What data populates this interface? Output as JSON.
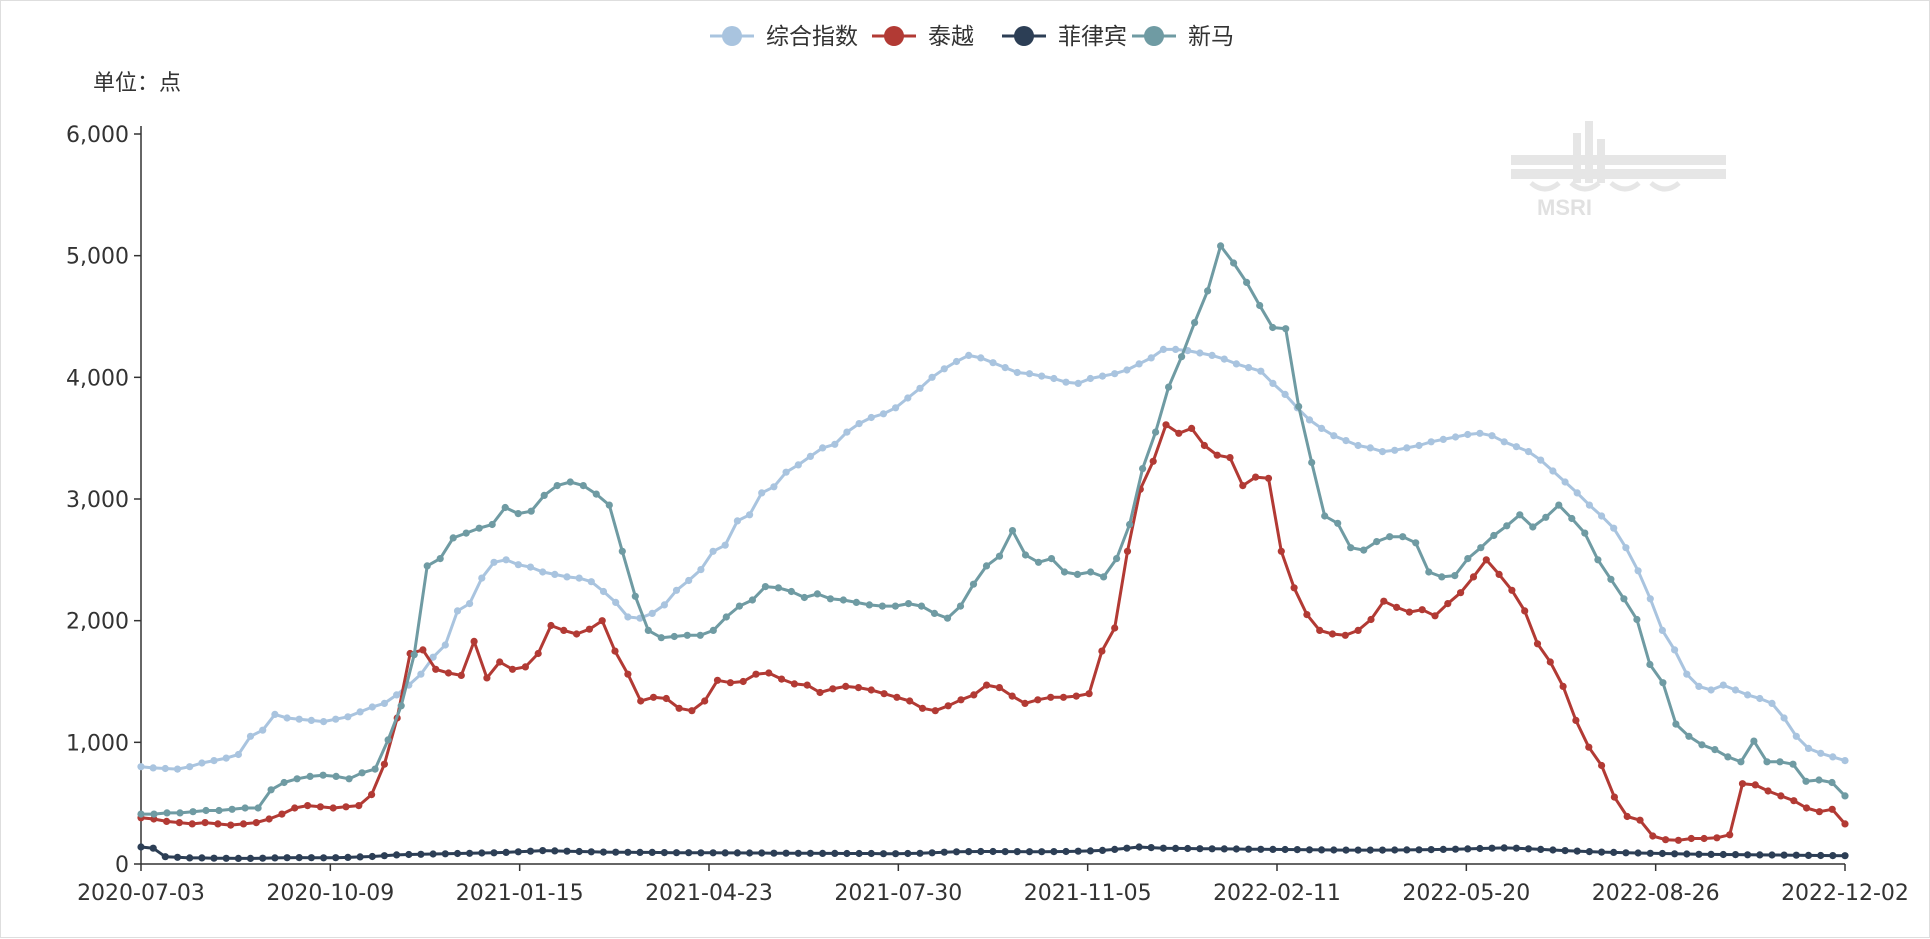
{
  "chart_data": {
    "type": "line",
    "unit_label": "单位：点",
    "x_tick_labels": [
      "2020-07-03",
      "2020-10-09",
      "2021-01-15",
      "2021-04-23",
      "2021-07-30",
      "2021-11-05",
      "2022-02-11",
      "2022-05-20",
      "2022-08-26",
      "2022-12-02"
    ],
    "x_start": "2020-07-03",
    "x_end": "2022-12-02",
    "y_ticks": [
      0,
      1000,
      2000,
      3000,
      4000,
      5000,
      6000
    ],
    "y_tick_labels": [
      "0",
      "1,000",
      "2,000",
      "3,000",
      "4,000",
      "5,000",
      "6,000"
    ],
    "ylim": [
      0,
      6000
    ],
    "legend_position": "top-center",
    "grid": false,
    "watermark": "MSRI",
    "series": [
      {
        "name": "综合指数",
        "color": "#a9c4df",
        "values": [
          800,
          790,
          785,
          780,
          800,
          830,
          850,
          870,
          900,
          1050,
          1100,
          1230,
          1200,
          1190,
          1180,
          1170,
          1190,
          1210,
          1250,
          1290,
          1320,
          1390,
          1470,
          1560,
          1700,
          1800,
          2080,
          2140,
          2350,
          2480,
          2500,
          2460,
          2440,
          2400,
          2380,
          2360,
          2350,
          2320,
          2240,
          2150,
          2030,
          2020,
          2060,
          2130,
          2250,
          2330,
          2420,
          2570,
          2620,
          2820,
          2870,
          3050,
          3100,
          3220,
          3280,
          3350,
          3420,
          3450,
          3550,
          3620,
          3670,
          3700,
          3750,
          3830,
          3910,
          4000,
          4070,
          4130,
          4180,
          4160,
          4120,
          4080,
          4040,
          4030,
          4010,
          3990,
          3960,
          3950,
          3990,
          4010,
          4030,
          4060,
          4110,
          4160,
          4230,
          4230,
          4220,
          4200,
          4180,
          4150,
          4110,
          4080,
          4050,
          3950,
          3860,
          3750,
          3650,
          3580,
          3520,
          3480,
          3440,
          3420,
          3390,
          3400,
          3420,
          3440,
          3470,
          3490,
          3510,
          3530,
          3540,
          3520,
          3470,
          3430,
          3390,
          3320,
          3230,
          3140,
          3050,
          2950,
          2860,
          2760,
          2600,
          2410,
          2180,
          1920,
          1760,
          1560,
          1460,
          1430,
          1470,
          1430,
          1390,
          1360,
          1320,
          1200,
          1050,
          950,
          910,
          880,
          850
        ]
      },
      {
        "name": "泰越",
        "color": "#b23a34",
        "values": [
          380,
          370,
          350,
          340,
          330,
          340,
          330,
          320,
          330,
          340,
          370,
          410,
          460,
          480,
          470,
          460,
          470,
          480,
          570,
          820,
          1200,
          1730,
          1760,
          1600,
          1570,
          1550,
          1830,
          1530,
          1660,
          1600,
          1620,
          1730,
          1960,
          1920,
          1890,
          1930,
          2000,
          1750,
          1560,
          1340,
          1370,
          1360,
          1280,
          1260,
          1340,
          1510,
          1490,
          1500,
          1560,
          1570,
          1520,
          1480,
          1470,
          1410,
          1440,
          1460,
          1450,
          1430,
          1400,
          1370,
          1340,
          1280,
          1260,
          1300,
          1350,
          1390,
          1470,
          1450,
          1380,
          1320,
          1350,
          1370,
          1370,
          1380,
          1400,
          1750,
          1940,
          2570,
          3080,
          3310,
          3610,
          3540,
          3580,
          3440,
          3360,
          3340,
          3110,
          3180,
          3170,
          2570,
          2270,
          2050,
          1920,
          1890,
          1880,
          1920,
          2010,
          2160,
          2110,
          2070,
          2090,
          2040,
          2140,
          2230,
          2360,
          2500,
          2380,
          2250,
          2080,
          1810,
          1660,
          1460,
          1180,
          960,
          810,
          550,
          390,
          360,
          230,
          200,
          195,
          210,
          210,
          215,
          240,
          660,
          650,
          600,
          560,
          520,
          460,
          430,
          450,
          330
        ]
      },
      {
        "name": "菲律宾",
        "color": "#2c3e55",
        "values": [
          140,
          130,
          60,
          55,
          50,
          50,
          48,
          47,
          46,
          46,
          48,
          50,
          52,
          53,
          52,
          51,
          52,
          54,
          58,
          62,
          68,
          75,
          78,
          80,
          82,
          84,
          86,
          88,
          90,
          92,
          95,
          100,
          105,
          110,
          108,
          105,
          103,
          100,
          98,
          97,
          96,
          95,
          95,
          94,
          93,
          93,
          92,
          92,
          91,
          91,
          90,
          90,
          89,
          89,
          88,
          88,
          87,
          87,
          86,
          86,
          86,
          85,
          85,
          86,
          88,
          92,
          97,
          100,
          102,
          103,
          103,
          102,
          102,
          101,
          101,
          102,
          103,
          105,
          108,
          112,
          120,
          130,
          140,
          135,
          130,
          128,
          127,
          126,
          125,
          124,
          123,
          122,
          121,
          120,
          119,
          118,
          117,
          116,
          115,
          114,
          114,
          114,
          114,
          115,
          116,
          117,
          118,
          120,
          122,
          124,
          127,
          130,
          132,
          130,
          125,
          120,
          115,
          110,
          106,
          102,
          98,
          95,
          92,
          90,
          88,
          86,
          84,
          82,
          80,
          79,
          78,
          77,
          76,
          75,
          74,
          73,
          72,
          71,
          70,
          69,
          68
        ]
      },
      {
        "name": "新马",
        "color": "#6f9ba3",
        "values": [
          410,
          410,
          420,
          420,
          430,
          440,
          440,
          450,
          460,
          460,
          610,
          670,
          700,
          720,
          730,
          720,
          700,
          750,
          780,
          1020,
          1300,
          1720,
          2450,
          2510,
          2680,
          2720,
          2760,
          2790,
          2930,
          2880,
          2900,
          3030,
          3110,
          3140,
          3110,
          3040,
          2950,
          2570,
          2200,
          1920,
          1860,
          1870,
          1880,
          1880,
          1920,
          2030,
          2120,
          2170,
          2280,
          2270,
          2240,
          2190,
          2220,
          2180,
          2170,
          2150,
          2130,
          2120,
          2120,
          2140,
          2120,
          2060,
          2020,
          2120,
          2300,
          2450,
          2530,
          2740,
          2540,
          2480,
          2510,
          2400,
          2380,
          2400,
          2360,
          2510,
          2790,
          3250,
          3550,
          3920,
          4170,
          4450,
          4710,
          5080,
          4940,
          4780,
          4590,
          4410,
          4400,
          3760,
          3300,
          2860,
          2800,
          2600,
          2580,
          2650,
          2690,
          2690,
          2640,
          2400,
          2360,
          2370,
          2510,
          2600,
          2700,
          2780,
          2870,
          2770,
          2850,
          2950,
          2840,
          2720,
          2500,
          2340,
          2180,
          2010,
          1640,
          1490,
          1150,
          1050,
          980,
          940,
          880,
          840,
          1010,
          840,
          840,
          820,
          680,
          690,
          670,
          560
        ]
      }
    ]
  }
}
